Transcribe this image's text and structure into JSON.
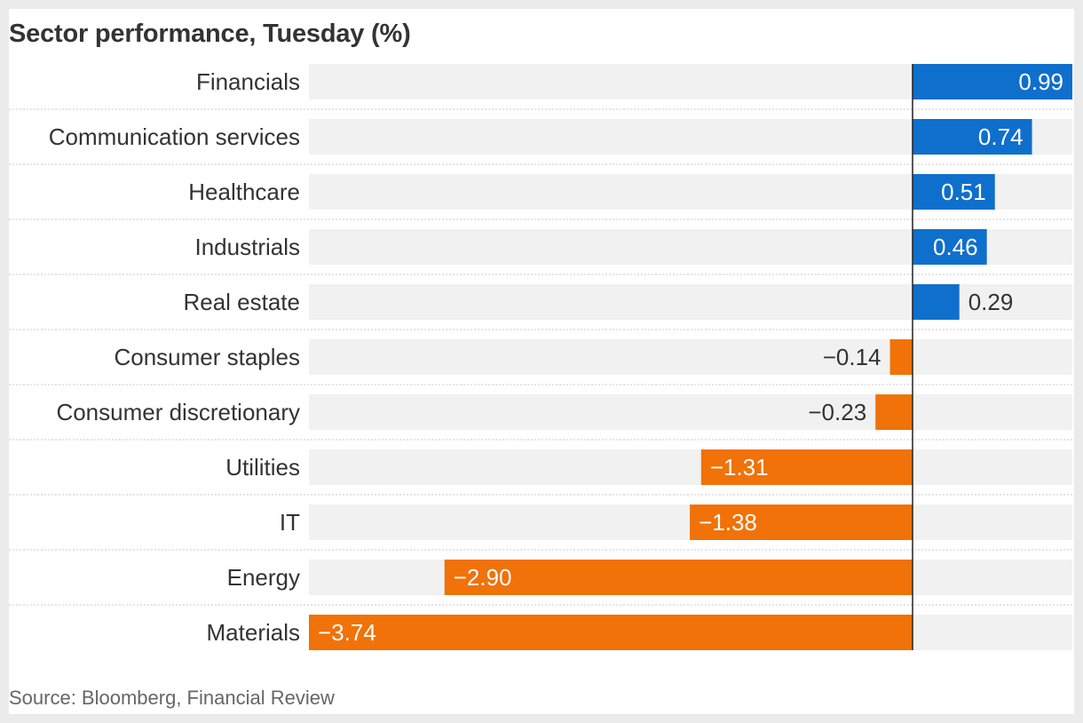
{
  "header": {
    "title": "Sector performance, Tuesday (%)"
  },
  "footer": {
    "source": "Source: Bloomberg, Financial Review"
  },
  "colors": {
    "positive": "#0f6fcc",
    "negative": "#f07208",
    "track": "#f1f1f1",
    "axis": "#222222",
    "text": "#333333",
    "divider": "#c8c8c8"
  },
  "chart_data": {
    "type": "bar",
    "orientation": "horizontal",
    "categories": [
      "Financials",
      "Communication services",
      "Healthcare",
      "Industrials",
      "Real estate",
      "Consumer staples",
      "Consumer discretionary",
      "Utilities",
      "IT",
      "Energy",
      "Materials"
    ],
    "values": [
      0.99,
      0.74,
      0.51,
      0.46,
      0.29,
      -0.14,
      -0.23,
      -1.31,
      -1.38,
      -2.9,
      -3.74
    ],
    "labels": [
      "0.99",
      "0.74",
      "0.51",
      "0.46",
      "0.29",
      "−0.14",
      "−0.23",
      "−1.31",
      "−1.38",
      "−2.90",
      "−3.74"
    ],
    "xlim": [
      -3.74,
      0.99
    ],
    "title": "Sector performance, Tuesday (%)",
    "xlabel": "",
    "ylabel": "",
    "grid": false,
    "legend": "none"
  }
}
